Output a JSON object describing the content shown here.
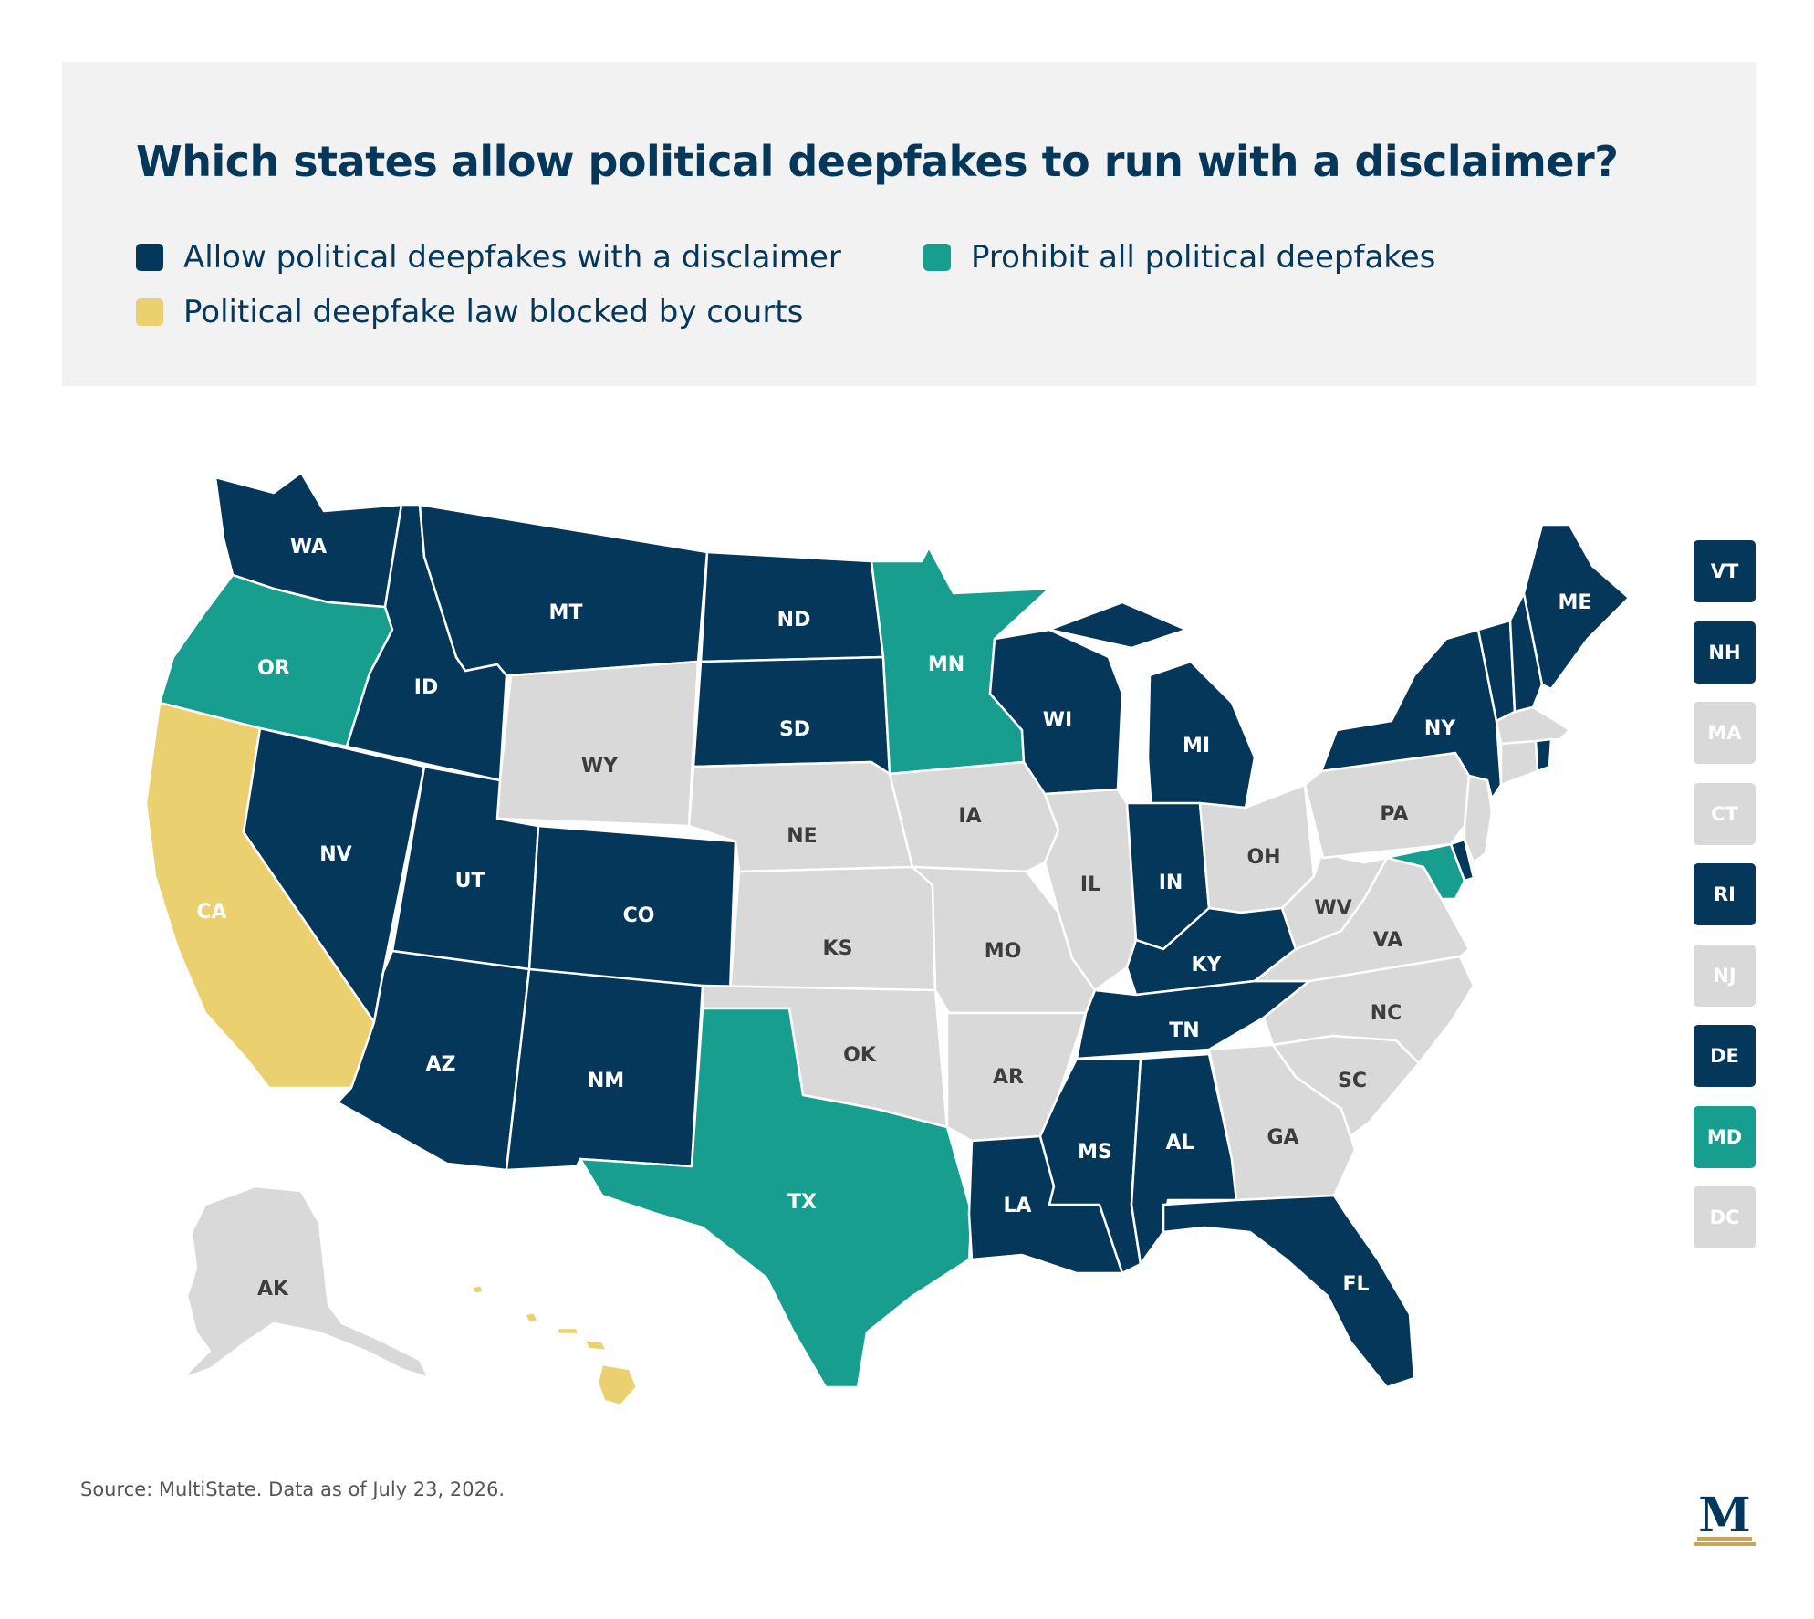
{
  "title": "Which states allow political deepfakes to run with a disclaimer?",
  "legend": [
    {
      "label": "Allow political deepfakes with a disclaimer",
      "color": "#05375a"
    },
    {
      "label": "Prohibit all political deepfakes",
      "color": "#179e8f"
    },
    {
      "label": "Political deepfake law blocked by courts",
      "color": "#ebd06f"
    }
  ],
  "colors": {
    "allow": "#05375a",
    "prohibit": "#179e8f",
    "blocked": "#ebd06f",
    "none": "#d9d9d9",
    "light_text": "#ffffff",
    "dark_text": "#3d3d3d",
    "source_text": "#555555"
  },
  "states": [
    {
      "code": "WA",
      "status": "allow"
    },
    {
      "code": "OR",
      "status": "prohibit"
    },
    {
      "code": "CA",
      "status": "blocked"
    },
    {
      "code": "ID",
      "status": "allow"
    },
    {
      "code": "NV",
      "status": "allow"
    },
    {
      "code": "MT",
      "status": "allow"
    },
    {
      "code": "WY",
      "status": "none"
    },
    {
      "code": "UT",
      "status": "allow"
    },
    {
      "code": "AZ",
      "status": "allow"
    },
    {
      "code": "CO",
      "status": "allow"
    },
    {
      "code": "NM",
      "status": "allow"
    },
    {
      "code": "ND",
      "status": "allow"
    },
    {
      "code": "SD",
      "status": "allow"
    },
    {
      "code": "NE",
      "status": "none"
    },
    {
      "code": "KS",
      "status": "none"
    },
    {
      "code": "OK",
      "status": "none"
    },
    {
      "code": "TX",
      "status": "prohibit"
    },
    {
      "code": "MN",
      "status": "prohibit"
    },
    {
      "code": "IA",
      "status": "none"
    },
    {
      "code": "MO",
      "status": "none"
    },
    {
      "code": "AR",
      "status": "none"
    },
    {
      "code": "LA",
      "status": "allow"
    },
    {
      "code": "WI",
      "status": "allow"
    },
    {
      "code": "IL",
      "status": "none"
    },
    {
      "code": "MI",
      "status": "allow"
    },
    {
      "code": "IN",
      "status": "allow"
    },
    {
      "code": "OH",
      "status": "none"
    },
    {
      "code": "KY",
      "status": "allow"
    },
    {
      "code": "TN",
      "status": "allow"
    },
    {
      "code": "MS",
      "status": "allow"
    },
    {
      "code": "AL",
      "status": "allow"
    },
    {
      "code": "GA",
      "status": "none"
    },
    {
      "code": "FL",
      "status": "allow"
    },
    {
      "code": "SC",
      "status": "none"
    },
    {
      "code": "NC",
      "status": "none"
    },
    {
      "code": "VA",
      "status": "none"
    },
    {
      "code": "WV",
      "status": "none"
    },
    {
      "code": "PA",
      "status": "none"
    },
    {
      "code": "NY",
      "status": "allow"
    },
    {
      "code": "ME",
      "status": "allow"
    },
    {
      "code": "AK",
      "status": "none"
    },
    {
      "code": "HI",
      "status": "blocked"
    }
  ],
  "small_states": [
    {
      "code": "VT",
      "status": "allow"
    },
    {
      "code": "NH",
      "status": "allow"
    },
    {
      "code": "MA",
      "status": "none"
    },
    {
      "code": "CT",
      "status": "none"
    },
    {
      "code": "RI",
      "status": "allow"
    },
    {
      "code": "NJ",
      "status": "none"
    },
    {
      "code": "DE",
      "status": "allow"
    },
    {
      "code": "MD",
      "status": "prohibit"
    },
    {
      "code": "DC",
      "status": "none"
    }
  ],
  "source": "Source: MultiState. Data as of July 23, 2026.",
  "logo_icon": "multistate-m-logo-icon"
}
